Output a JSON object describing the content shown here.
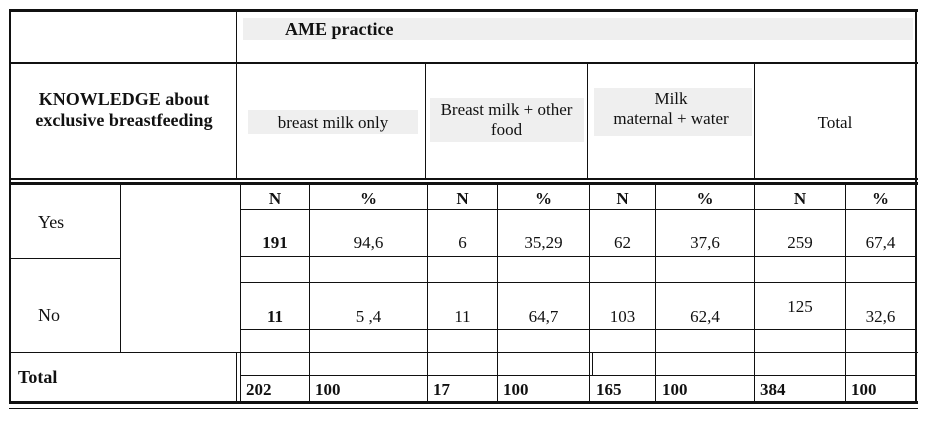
{
  "table": {
    "practice_header": "AME practice",
    "knowledge_header": [
      "KNOWLEDGE about",
      "exclusive breastfeeding"
    ],
    "groups": [
      [
        "breast milk only"
      ],
      [
        "Breast milk + other",
        "food"
      ],
      [
        "Milk",
        "maternal + water"
      ],
      [
        "Total"
      ]
    ],
    "sub_headers": [
      "N",
      "%",
      "N",
      "%",
      "N",
      "%",
      "N",
      "%"
    ],
    "rows": [
      {
        "label": "Yes",
        "values": [
          "191",
          "94,6",
          "6",
          "35,29",
          "62",
          "37,6",
          "259",
          "67,4"
        ]
      },
      {
        "label": "No",
        "values": [
          "11",
          "5 ,4",
          "11",
          "64,7",
          "103",
          "62,4",
          "125",
          "32,6"
        ]
      }
    ],
    "total": {
      "label": "Total",
      "values": [
        "202",
        "100",
        "17",
        "100",
        "165",
        "100",
        "384",
        "100"
      ]
    }
  }
}
